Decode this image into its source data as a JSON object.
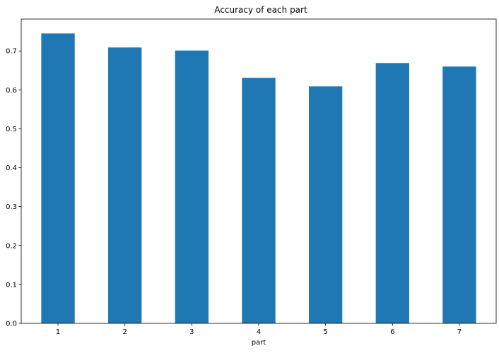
{
  "chart_data": {
    "type": "bar",
    "title": "Accuracy of each part",
    "xlabel": "part",
    "ylabel": "",
    "categories": [
      "1",
      "2",
      "3",
      "4",
      "5",
      "6",
      "7"
    ],
    "values": [
      0.745,
      0.709,
      0.701,
      0.631,
      0.609,
      0.669,
      0.66
    ],
    "ylim": [
      0,
      0.782
    ],
    "yticks": [
      0.0,
      0.1,
      0.2,
      0.3,
      0.4,
      0.5,
      0.6,
      0.7
    ],
    "ytick_labels": [
      "0.0",
      "0.1",
      "0.2",
      "0.3",
      "0.4",
      "0.5",
      "0.6",
      "0.7"
    ],
    "grid": false,
    "legend": "none",
    "bar_color": "#1f77b4"
  }
}
